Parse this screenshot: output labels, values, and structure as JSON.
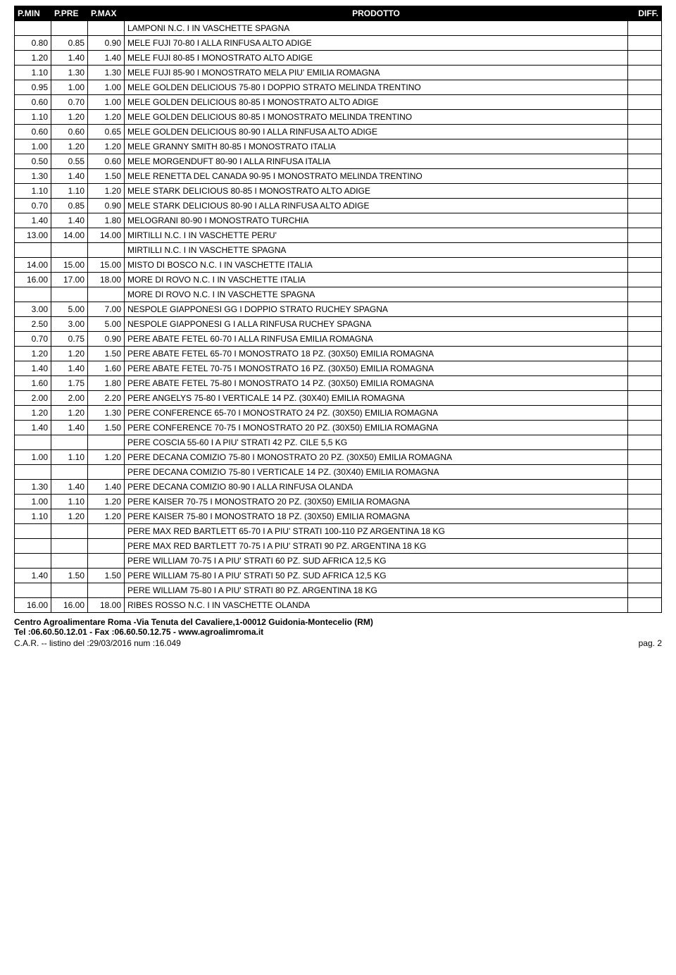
{
  "header": {
    "cols": [
      "P.MIN",
      "P.PRE",
      "P.MAX",
      "PRODOTTO",
      "DIFF."
    ]
  },
  "rows": [
    {
      "pmin": "",
      "ppre": "",
      "pmax": "",
      "prod": "LAMPONI  N.C. I IN VASCHETTE  SPAGNA",
      "diff": ""
    },
    {
      "pmin": "0.80",
      "ppre": "0.85",
      "pmax": "0.90",
      "prod": "MELE FUJI 70-80 I ALLA RINFUSA  ALTO ADIGE",
      "diff": ""
    },
    {
      "pmin": "1.20",
      "ppre": "1.40",
      "pmax": "1.40",
      "prod": "MELE FUJI 80-85 I MONOSTRATO  ALTO ADIGE",
      "diff": ""
    },
    {
      "pmin": "1.10",
      "ppre": "1.30",
      "pmax": "1.30",
      "prod": "MELE FUJI 85-90 I MONOSTRATO MELA PIU' EMILIA ROMAGNA",
      "diff": ""
    },
    {
      "pmin": "0.95",
      "ppre": "1.00",
      "pmax": "1.00",
      "prod": "MELE GOLDEN DELICIOUS 75-80 I DOPPIO STRATO MELINDA TRENTINO",
      "diff": ""
    },
    {
      "pmin": "0.60",
      "ppre": "0.70",
      "pmax": "1.00",
      "prod": "MELE GOLDEN DELICIOUS 80-85 I MONOSTRATO  ALTO ADIGE",
      "diff": ""
    },
    {
      "pmin": "1.10",
      "ppre": "1.20",
      "pmax": "1.20",
      "prod": "MELE GOLDEN DELICIOUS 80-85 I MONOSTRATO MELINDA TRENTINO",
      "diff": ""
    },
    {
      "pmin": "0.60",
      "ppre": "0.60",
      "pmax": "0.65",
      "prod": "MELE GOLDEN DELICIOUS 80-90 I ALLA RINFUSA  ALTO ADIGE",
      "diff": ""
    },
    {
      "pmin": "1.00",
      "ppre": "1.20",
      "pmax": "1.20",
      "prod": "MELE GRANNY SMITH 80-85 I MONOSTRATO  ITALIA",
      "diff": ""
    },
    {
      "pmin": "0.50",
      "ppre": "0.55",
      "pmax": "0.60",
      "prod": "MELE MORGENDUFT 80-90 I ALLA RINFUSA  ITALIA",
      "diff": ""
    },
    {
      "pmin": "1.30",
      "ppre": "1.40",
      "pmax": "1.50",
      "prod": "MELE RENETTA DEL CANADA 90-95 I MONOSTRATO MELINDA TRENTINO",
      "diff": ""
    },
    {
      "pmin": "1.10",
      "ppre": "1.10",
      "pmax": "1.20",
      "prod": "MELE STARK DELICIOUS 80-85 I MONOSTRATO  ALTO ADIGE",
      "diff": ""
    },
    {
      "pmin": "0.70",
      "ppre": "0.85",
      "pmax": "0.90",
      "prod": "MELE STARK DELICIOUS 80-90 I ALLA RINFUSA  ALTO ADIGE",
      "diff": ""
    },
    {
      "pmin": "1.40",
      "ppre": "1.40",
      "pmax": "1.80",
      "prod": "MELOGRANI  80-90 I MONOSTRATO  TURCHIA",
      "diff": ""
    },
    {
      "pmin": "13.00",
      "ppre": "14.00",
      "pmax": "14.00",
      "prod": "MIRTILLI  N.C. I IN VASCHETTE  PERU'",
      "diff": ""
    },
    {
      "pmin": "",
      "ppre": "",
      "pmax": "",
      "prod": "MIRTILLI  N.C. I IN VASCHETTE  SPAGNA",
      "diff": ""
    },
    {
      "pmin": "14.00",
      "ppre": "15.00",
      "pmax": "15.00",
      "prod": "MISTO DI BOSCO  N.C. I IN VASCHETTE  ITALIA",
      "diff": ""
    },
    {
      "pmin": "16.00",
      "ppre": "17.00",
      "pmax": "18.00",
      "prod": "MORE DI ROVO  N.C. I IN VASCHETTE  ITALIA",
      "diff": ""
    },
    {
      "pmin": "",
      "ppre": "",
      "pmax": "",
      "prod": "MORE DI ROVO  N.C. I IN VASCHETTE  SPAGNA",
      "diff": ""
    },
    {
      "pmin": "3.00",
      "ppre": "5.00",
      "pmax": "7.00",
      "prod": "NESPOLE GIAPPONESI  GG I DOPPIO STRATO RUCHEY SPAGNA",
      "diff": ""
    },
    {
      "pmin": "2.50",
      "ppre": "3.00",
      "pmax": "5.00",
      "prod": "NESPOLE GIAPPONESI  G I ALLA RINFUSA RUCHEY SPAGNA",
      "diff": ""
    },
    {
      "pmin": "0.70",
      "ppre": "0.75",
      "pmax": "0.90",
      "prod": "PERE ABATE FETEL 60-70 I ALLA RINFUSA  EMILIA ROMAGNA",
      "diff": ""
    },
    {
      "pmin": "1.20",
      "ppre": "1.20",
      "pmax": "1.50",
      "prod": "PERE ABATE FETEL 65-70 I MONOSTRATO 18 PZ. (30X50)  EMILIA ROMAGNA",
      "diff": ""
    },
    {
      "pmin": "1.40",
      "ppre": "1.40",
      "pmax": "1.60",
      "prod": "PERE ABATE FETEL 70-75 I MONOSTRATO 16 PZ. (30X50)  EMILIA ROMAGNA",
      "diff": ""
    },
    {
      "pmin": "1.60",
      "ppre": "1.75",
      "pmax": "1.80",
      "prod": "PERE ABATE FETEL 75-80 I MONOSTRATO 14 PZ. (30X50)  EMILIA ROMAGNA",
      "diff": ""
    },
    {
      "pmin": "2.00",
      "ppre": "2.00",
      "pmax": "2.20",
      "prod": "PERE ANGELYS 75-80 I VERTICALE 14 PZ. (30X40)  EMILIA ROMAGNA",
      "diff": ""
    },
    {
      "pmin": "1.20",
      "ppre": "1.20",
      "pmax": "1.30",
      "prod": "PERE CONFERENCE 65-70 I MONOSTRATO 24 PZ. (30X50)  EMILIA ROMAGNA",
      "diff": ""
    },
    {
      "pmin": "1.40",
      "ppre": "1.40",
      "pmax": "1.50",
      "prod": "PERE CONFERENCE 70-75 I MONOSTRATO 20 PZ. (30X50)  EMILIA ROMAGNA",
      "diff": ""
    },
    {
      "pmin": "",
      "ppre": "",
      "pmax": "",
      "prod": "PERE COSCIA 55-60 I A PIU' STRATI 42 PZ.  CILE 5,5 KG",
      "diff": ""
    },
    {
      "pmin": "1.00",
      "ppre": "1.10",
      "pmax": "1.20",
      "prod": "PERE DECANA COMIZIO 75-80 I MONOSTRATO 20 PZ. (30X50)  EMILIA ROMAGNA",
      "diff": ""
    },
    {
      "pmin": "",
      "ppre": "",
      "pmax": "",
      "prod": "PERE DECANA COMIZIO 75-80 I VERTICALE 14 PZ. (30X40)  EMILIA ROMAGNA",
      "diff": ""
    },
    {
      "pmin": "1.30",
      "ppre": "1.40",
      "pmax": "1.40",
      "prod": "PERE DECANA COMIZIO 80-90 I ALLA RINFUSA  OLANDA",
      "diff": ""
    },
    {
      "pmin": "1.00",
      "ppre": "1.10",
      "pmax": "1.20",
      "prod": "PERE KAISER 70-75 I MONOSTRATO 20 PZ. (30X50)  EMILIA ROMAGNA",
      "diff": ""
    },
    {
      "pmin": "1.10",
      "ppre": "1.20",
      "pmax": "1.20",
      "prod": "PERE KAISER 75-80 I MONOSTRATO 18 PZ. (30X50)  EMILIA ROMAGNA",
      "diff": ""
    },
    {
      "pmin": "",
      "ppre": "",
      "pmax": "",
      "prod": "PERE MAX RED BARTLETT 65-70 I A PIU' STRATI 100-110 PZ ARGENTINA 18 KG",
      "diff": ""
    },
    {
      "pmin": "",
      "ppre": "",
      "pmax": "",
      "prod": "PERE MAX RED BARTLETT 70-75 I A PIU' STRATI 90 PZ.  ARGENTINA 18 KG",
      "diff": ""
    },
    {
      "pmin": "",
      "ppre": "",
      "pmax": "",
      "prod": "PERE WILLIAM 70-75 I A PIU' STRATI 60 PZ.  SUD AFRICA 12,5 KG",
      "diff": ""
    },
    {
      "pmin": "1.40",
      "ppre": "1.50",
      "pmax": "1.50",
      "prod": "PERE WILLIAM 75-80 I A PIU' STRATI 50 PZ.  SUD AFRICA 12,5 KG",
      "diff": ""
    },
    {
      "pmin": "",
      "ppre": "",
      "pmax": "",
      "prod": "PERE WILLIAM 75-80 I A PIU' STRATI 80 PZ.  ARGENTINA 18 KG",
      "diff": ""
    },
    {
      "pmin": "16.00",
      "ppre": "16.00",
      "pmax": "18.00",
      "prod": "RIBES ROSSO N.C. I IN VASCHETTE  OLANDA",
      "diff": ""
    }
  ],
  "footer": {
    "line1": "Centro Agroalimentare Roma -Via Tenuta del Cavaliere,1-00012 Guidonia-Montecelio (RM)",
    "line2": "Tel :06.60.50.12.01 - Fax :06.60.50.12.75 - www.agroalimroma.it",
    "line3_left": "C.A.R.  --  listino del :29/03/2016   num :16.049",
    "line3_right": "pag. 2"
  }
}
